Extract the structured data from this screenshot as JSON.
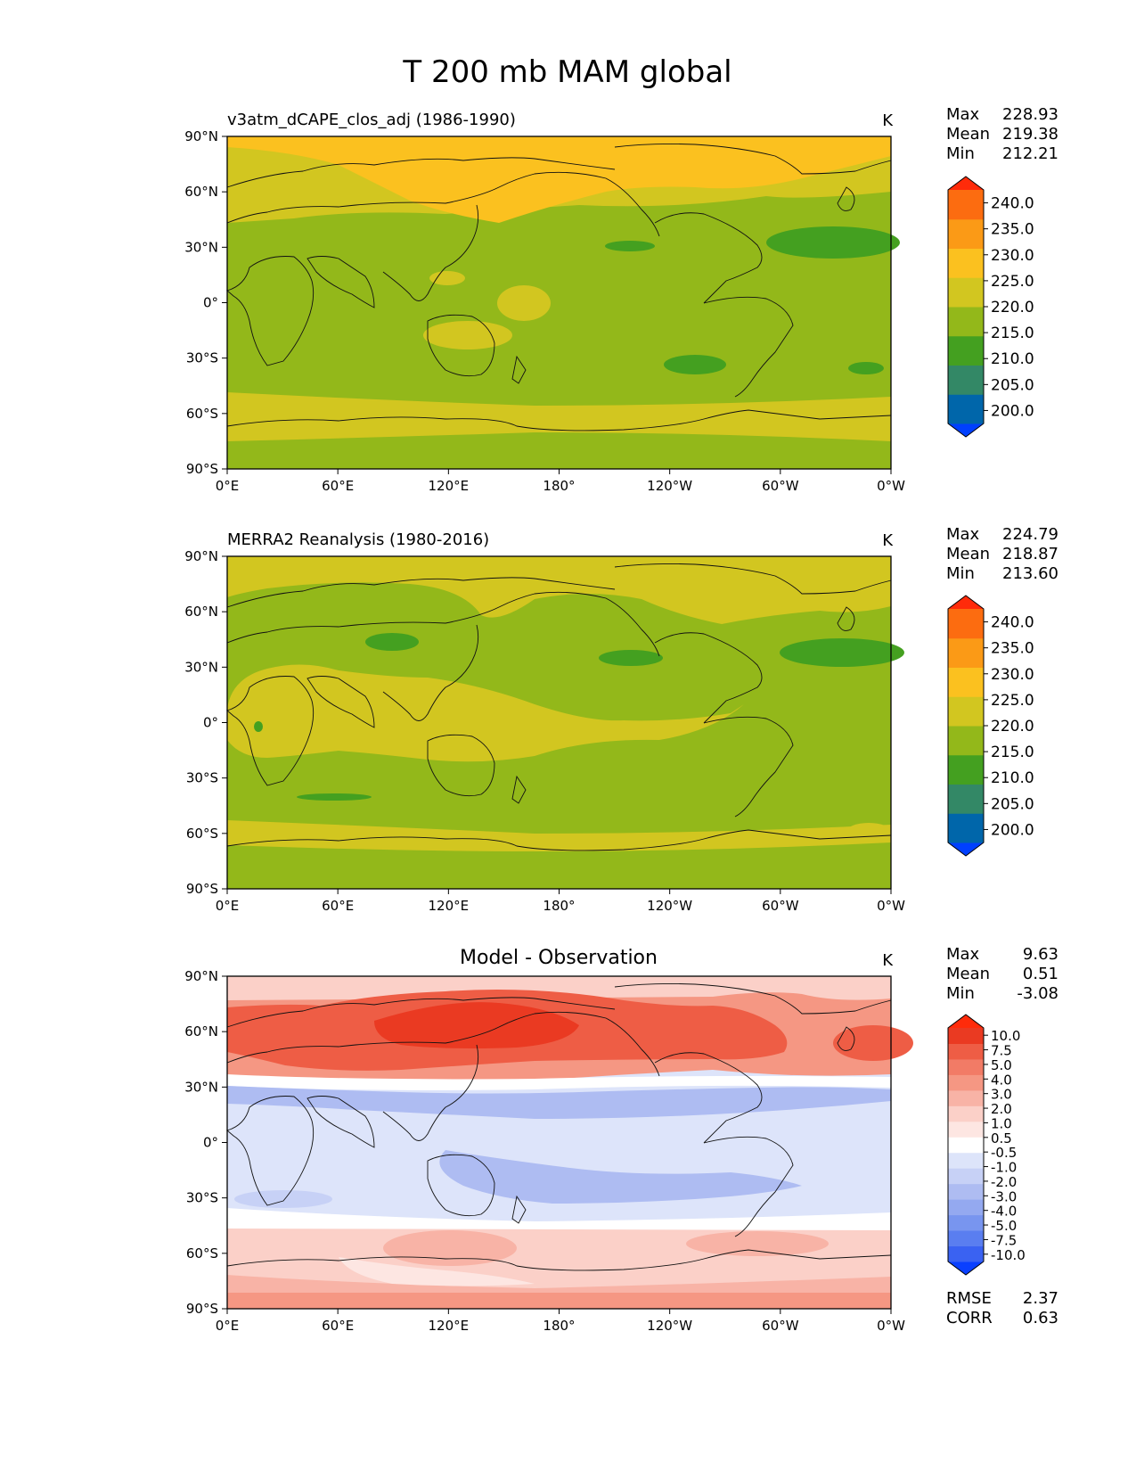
{
  "figure_title": "T 200 mb MAM global",
  "panels": [
    {
      "title": "v3atm_dCAPE_clos_adj (1986-1990)",
      "units": "K",
      "stats": {
        "max_label": "Max",
        "max": "228.93",
        "mean_label": "Mean",
        "mean": "219.38",
        "min_label": "Min",
        "min": "212.21"
      }
    },
    {
      "title": "MERRA2 Reanalysis (1980-2016)",
      "units": "K",
      "stats": {
        "max_label": "Max",
        "max": "224.79",
        "mean_label": "Mean",
        "mean": "218.87",
        "min_label": "Min",
        "min": "213.60"
      }
    },
    {
      "title": "Model - Observation",
      "units": "K",
      "stats": {
        "max_label": "Max",
        "max": "9.63",
        "mean_label": "Mean",
        "mean": "0.51",
        "min_label": "Min",
        "min": "-3.08"
      },
      "metrics": {
        "rmse_label": "RMSE",
        "rmse": "2.37",
        "corr_label": "CORR",
        "corr": "0.63"
      }
    }
  ],
  "x_ticks": [
    "0°E",
    "60°E",
    "120°E",
    "180°",
    "120°W",
    "60°W",
    "0°W"
  ],
  "y_ticks": [
    "90°N",
    "60°N",
    "30°N",
    "0°",
    "30°S",
    "60°S",
    "90°S"
  ],
  "abs_colorbar": {
    "labels": [
      "240.0",
      "235.0",
      "230.0",
      "225.0",
      "220.0",
      "215.0",
      "210.0",
      "205.0",
      "200.0"
    ],
    "colors": [
      "#0040ff",
      "#0066aa",
      "#338866",
      "#44a020",
      "#93b81a",
      "#d2c620",
      "#fbc11f",
      "#fb9a16",
      "#fc6c10",
      "#ff2b0a"
    ]
  },
  "diff_colorbar": {
    "labels": [
      "10.0",
      "7.5",
      "5.0",
      "4.0",
      "3.0",
      "2.0",
      "1.0",
      "0.5",
      "-0.5",
      "-1.0",
      "-2.0",
      "-3.0",
      "-4.0",
      "-5.0",
      "-7.5",
      "-10.0"
    ],
    "colors": [
      "#0a40ff",
      "#3a62f2",
      "#5a7ef0",
      "#7895ef",
      "#94a9f0",
      "#aebcf2",
      "#c7d1f6",
      "#dde4fa",
      "#ffffff",
      "#fde6e2",
      "#fbd0c8",
      "#f8b3a6",
      "#f59783",
      "#f27b66",
      "#ee5d45",
      "#ea3a22",
      "#ff2b0a"
    ]
  },
  "chart_data": [
    {
      "type": "heatmap",
      "title": "v3atm_dCAPE_clos_adj (1986-1990)",
      "variable": "T 200 mb MAM",
      "units": "K",
      "xlim": [
        0,
        360
      ],
      "ylim": [
        -90,
        90
      ],
      "zonal_bands": [
        {
          "lat": [
            -90,
            -75
          ],
          "value_range": "215-220"
        },
        {
          "lat": [
            -75,
            -45
          ],
          "value_range": "220-225"
        },
        {
          "lat": [
            -45,
            40
          ],
          "value_range": "215-220"
        },
        {
          "lat": [
            40,
            90
          ],
          "value_range": "220-230"
        }
      ],
      "stats": {
        "max": 228.93,
        "mean": 219.38,
        "min": 212.21
      }
    },
    {
      "type": "heatmap",
      "title": "MERRA2 Reanalysis (1980-2016)",
      "variable": "T 200 mb MAM",
      "units": "K",
      "xlim": [
        0,
        360
      ],
      "ylim": [
        -90,
        90
      ],
      "zonal_bands": [
        {
          "lat": [
            -90,
            -70
          ],
          "value_range": "215-220"
        },
        {
          "lat": [
            -70,
            -55
          ],
          "value_range": "220-225"
        },
        {
          "lat": [
            -55,
            20
          ],
          "value_range": "215-225"
        },
        {
          "lat": [
            20,
            55
          ],
          "value_range": "215-220"
        },
        {
          "lat": [
            55,
            90
          ],
          "value_range": "220-225"
        }
      ],
      "stats": {
        "max": 224.79,
        "mean": 218.87,
        "min": 213.6
      }
    },
    {
      "type": "heatmap",
      "title": "Model - Observation",
      "variable": "T 200 mb MAM difference",
      "units": "K",
      "xlim": [
        0,
        360
      ],
      "ylim": [
        -90,
        90
      ],
      "zonal_bands": [
        {
          "lat": [
            -90,
            -75
          ],
          "value_range": "2 to 4"
        },
        {
          "lat": [
            -75,
            -45
          ],
          "value_range": "0.5 to 3"
        },
        {
          "lat": [
            -45,
            -35
          ],
          "value_range": "-0.5 to 0.5"
        },
        {
          "lat": [
            -35,
            25
          ],
          "value_range": "-2 to -0.5"
        },
        {
          "lat": [
            25,
            35
          ],
          "value_range": "-0.5 to 1"
        },
        {
          "lat": [
            35,
            90
          ],
          "value_range": "3 to 10"
        }
      ],
      "stats": {
        "max": 9.63,
        "mean": 0.51,
        "min": -3.08,
        "rmse": 2.37,
        "corr": 0.63
      }
    }
  ]
}
